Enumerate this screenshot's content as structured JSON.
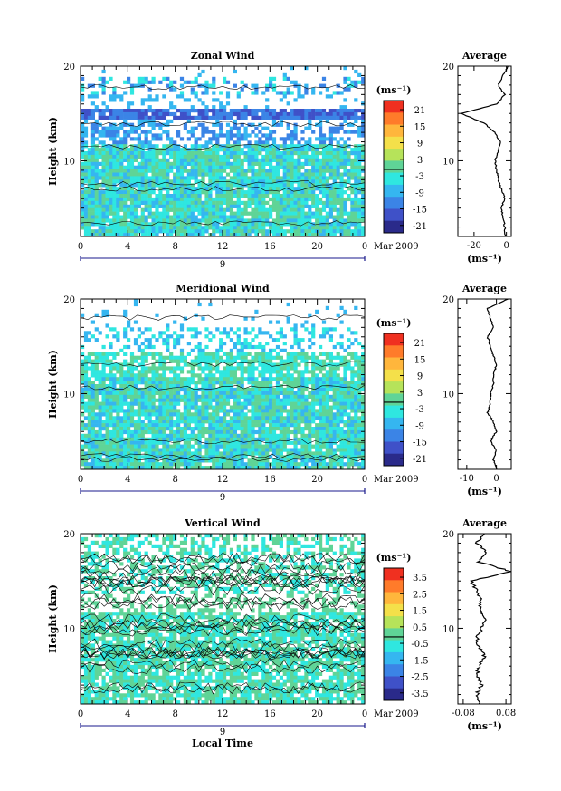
{
  "chart_data": [
    {
      "type": "heatmap",
      "title": "Zonal Wind",
      "ylabel": "Height (km)",
      "xlabel": "",
      "x_ticks": [
        "0",
        "4",
        "8",
        "12",
        "16",
        "20",
        "0"
      ],
      "y_ticks": [
        "20",
        "10"
      ],
      "xlim": [
        0,
        24
      ],
      "ylim": [
        2,
        20
      ],
      "date_day": "9",
      "date_label": "Mar 2009",
      "colorbar": {
        "unit": "(ms⁻¹)",
        "ticks": [
          "21",
          "15",
          "9",
          "3",
          "-3",
          "-9",
          "-15",
          "-21"
        ]
      },
      "profile": {
        "title": "Average",
        "xlabel": "(ms⁻¹)",
        "x_ticks": [
          "-20",
          "0"
        ],
        "y_ticks": [
          "20",
          "10"
        ],
        "xlim": [
          -30,
          3
        ],
        "values_km": [
          2,
          3,
          4,
          5,
          6,
          7,
          8,
          9,
          10,
          11,
          12,
          13,
          14,
          15,
          16,
          17,
          18,
          19,
          20
        ],
        "values": [
          -1,
          -1,
          -2,
          -3,
          -1,
          -3,
          -5,
          -6,
          -7,
          -5,
          -4,
          -7,
          -14,
          -28,
          -6,
          -1,
          -5,
          -2,
          1
        ]
      }
    },
    {
      "type": "heatmap",
      "title": "Meridional Wind",
      "ylabel": "Height (km)",
      "xlabel": "",
      "x_ticks": [
        "0",
        "4",
        "8",
        "12",
        "16",
        "20",
        "0"
      ],
      "y_ticks": [
        "20",
        "10"
      ],
      "xlim": [
        0,
        24
      ],
      "ylim": [
        2,
        20
      ],
      "date_day": "9",
      "date_label": "Mar 2009",
      "colorbar": {
        "unit": "(ms⁻¹)",
        "ticks": [
          "21",
          "15",
          "9",
          "3",
          "-3",
          "-9",
          "-15",
          "-21"
        ]
      },
      "profile": {
        "title": "Average",
        "xlabel": "(ms⁻¹)",
        "x_ticks": [
          "-10",
          "0"
        ],
        "y_ticks": [
          "20",
          "10"
        ],
        "xlim": [
          -13,
          5
        ],
        "values_km": [
          2,
          3,
          4,
          5,
          6,
          7,
          8,
          9,
          10,
          11,
          12,
          13,
          14,
          15,
          16,
          17,
          18,
          19,
          20
        ],
        "values": [
          0,
          -1,
          0,
          -2,
          0,
          -1,
          -3,
          -2,
          -2,
          -1,
          -1,
          0,
          -1,
          -2,
          -3,
          -1,
          -2,
          -3,
          4
        ]
      }
    },
    {
      "type": "heatmap",
      "title": "Vertical Wind",
      "ylabel": "Height (km)",
      "xlabel": "Local Time",
      "x_ticks": [
        "0",
        "4",
        "8",
        "12",
        "16",
        "20",
        "0"
      ],
      "y_ticks": [
        "20",
        "10"
      ],
      "xlim": [
        0,
        24
      ],
      "ylim": [
        2,
        20
      ],
      "date_day": "9",
      "date_label": "Mar 2009",
      "colorbar": {
        "unit": "(ms⁻¹)",
        "ticks": [
          "3.5",
          "2.5",
          "1.5",
          "0.5",
          "-0.5",
          "-1.5",
          "-2.5",
          "-3.5"
        ]
      },
      "profile": {
        "title": "Average",
        "xlabel": "(ms⁻¹)",
        "x_ticks": [
          "-0.08",
          "0.08"
        ],
        "y_ticks": [
          "20",
          "10"
        ],
        "xlim": [
          -0.1,
          0.1
        ],
        "values_km": [
          2,
          3,
          4,
          5,
          6,
          7,
          8,
          9,
          10,
          11,
          12,
          13,
          14,
          15,
          16,
          17,
          18,
          19,
          20
        ],
        "values": [
          -0.02,
          -0.03,
          -0.01,
          -0.03,
          -0.02,
          0.0,
          -0.02,
          -0.03,
          -0.01,
          0.0,
          -0.02,
          -0.01,
          -0.03,
          -0.05,
          0.1,
          -0.02,
          0.01,
          -0.03,
          0.0
        ]
      }
    }
  ],
  "colors": {
    "colorbar_palette": [
      "#f03020",
      "#ff7b2a",
      "#ffb63c",
      "#f4e04a",
      "#b6e35a",
      "#5fd497",
      "#2fe7e0",
      "#35b6f0",
      "#3b84e6",
      "#3f51c8",
      "#2a2a8a"
    ]
  }
}
